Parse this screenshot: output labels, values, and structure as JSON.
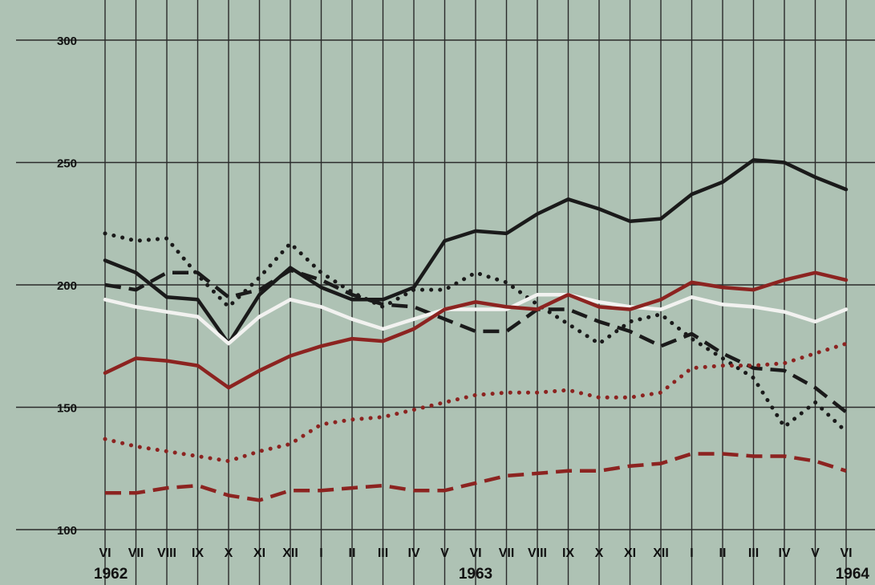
{
  "chart_data": {
    "type": "line",
    "title": "",
    "xlabel": "",
    "ylabel": "",
    "x": [
      "VI",
      "VII",
      "VIII",
      "IX",
      "X",
      "XI",
      "XII",
      "I",
      "II",
      "III",
      "IV",
      "V",
      "VI",
      "VII",
      "VIII",
      "IX",
      "X",
      "XI",
      "XII",
      "I",
      "II",
      "III",
      "IV",
      "V",
      "VI"
    ],
    "year_labels": [
      {
        "label": "1962",
        "index": 0
      },
      {
        "label": "1963",
        "index": 12
      },
      {
        "label": "1964",
        "index": 24
      }
    ],
    "yticks": [
      100,
      150,
      200,
      250,
      300
    ],
    "ylim": [
      100,
      300
    ],
    "grid": true,
    "series": [
      {
        "color": "#1a1a1a",
        "style": "solid",
        "values": [
          210,
          205,
          195,
          194,
          176,
          196,
          207,
          199,
          194,
          194,
          199,
          218,
          222,
          221,
          229,
          235,
          231,
          226,
          227,
          237,
          242,
          251,
          250,
          244,
          239
        ]
      },
      {
        "color": "#1a1a1a",
        "style": "dashed",
        "values": [
          200,
          198,
          205,
          205,
          195,
          198,
          206,
          202,
          196,
          192,
          191,
          186,
          181,
          181,
          190,
          190,
          185,
          181,
          175,
          180,
          172,
          166,
          165,
          158,
          148
        ]
      },
      {
        "color": "#1a1a1a",
        "style": "dotted",
        "values": [
          221,
          218,
          219,
          204,
          191,
          203,
          217,
          205,
          197,
          191,
          198,
          198,
          205,
          201,
          192,
          184,
          176,
          185,
          188,
          178,
          170,
          162,
          142,
          152,
          140
        ]
      },
      {
        "color": "#f2f2f0",
        "style": "solid",
        "values": [
          194,
          191,
          189,
          187,
          176,
          187,
          194,
          191,
          186,
          182,
          186,
          190,
          190,
          190,
          196,
          196,
          193,
          191,
          190,
          195,
          192,
          191,
          189,
          185,
          190
        ]
      },
      {
        "color": "#8c2320",
        "style": "solid",
        "values": [
          164,
          170,
          169,
          167,
          158,
          165,
          171,
          175,
          178,
          177,
          182,
          190,
          193,
          191,
          190,
          196,
          191,
          190,
          194,
          201,
          199,
          198,
          202,
          205,
          202
        ]
      },
      {
        "color": "#8c2320",
        "style": "dotted",
        "values": [
          137,
          134,
          132,
          130,
          128,
          132,
          135,
          143,
          145,
          146,
          149,
          152,
          155,
          156,
          156,
          157,
          154,
          154,
          156,
          166,
          167,
          167,
          168,
          172,
          176
        ]
      },
      {
        "color": "#8c2320",
        "style": "dashed",
        "values": [
          115,
          115,
          117,
          118,
          114,
          112,
          116,
          116,
          117,
          118,
          116,
          116,
          119,
          122,
          123,
          124,
          124,
          126,
          127,
          131,
          131,
          130,
          130,
          128,
          124
        ]
      }
    ]
  }
}
